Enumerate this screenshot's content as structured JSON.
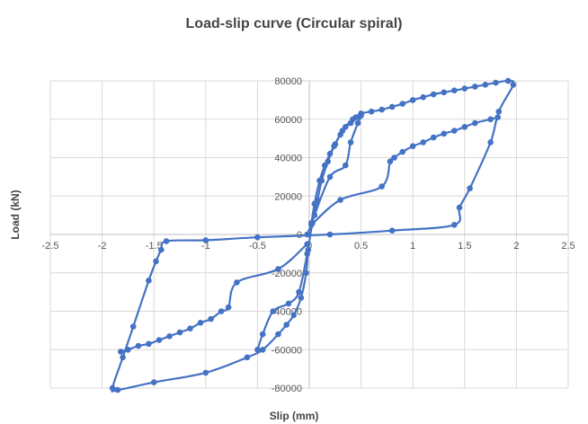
{
  "chart_data": {
    "type": "scatter",
    "title": "Load-slip curve (Circular spiral)",
    "xlabel": "Slip (mm)",
    "ylabel": "Load (kN)",
    "xlim": [
      -2.5,
      2.5
    ],
    "ylim": [
      -80000,
      80000
    ],
    "xticks": [
      "-2.5",
      "-2",
      "-1.5",
      "-1",
      "-0.5",
      "0",
      "0.5",
      "1",
      "1.5",
      "2",
      "2.5"
    ],
    "yticks": [
      "-80000",
      "-60000",
      "-40000",
      "-20000",
      "0",
      "20000",
      "40000",
      "60000",
      "80000"
    ],
    "grid": "vertical and horizontal major gridlines",
    "legend": "none",
    "series_color": "#4472C4",
    "series": [
      {
        "style": "smooth line with markers",
        "points": [
          [
            -0.02,
            0
          ],
          [
            0.02,
            6000
          ],
          [
            0.05,
            16000
          ],
          [
            0.1,
            28000
          ],
          [
            0.15,
            36000
          ],
          [
            0.2,
            42000
          ],
          [
            0.25,
            47000
          ],
          [
            0.3,
            52000
          ],
          [
            0.35,
            56000
          ],
          [
            0.4,
            58000
          ],
          [
            0.45,
            61000
          ],
          [
            0.5,
            63000
          ],
          [
            0.6,
            64000
          ],
          [
            0.7,
            65000
          ],
          [
            0.8,
            66500
          ],
          [
            0.9,
            68000
          ],
          [
            1.0,
            70000
          ],
          [
            1.1,
            71500
          ],
          [
            1.2,
            73000
          ],
          [
            1.3,
            74000
          ],
          [
            1.4,
            75000
          ],
          [
            1.5,
            76000
          ],
          [
            1.6,
            77000
          ],
          [
            1.7,
            78000
          ],
          [
            1.8,
            79000
          ],
          [
            1.92,
            80000
          ],
          [
            1.97,
            78000
          ],
          [
            1.83,
            64000
          ],
          [
            1.75,
            48000
          ],
          [
            1.55,
            24000
          ],
          [
            1.45,
            14000
          ],
          [
            1.4,
            5000
          ],
          [
            0.8,
            2000
          ],
          [
            0.2,
            0
          ],
          [
            -0.5,
            -1500
          ],
          [
            -1.0,
            -3000
          ],
          [
            -1.38,
            -3500
          ],
          [
            -1.43,
            -8000
          ],
          [
            -1.48,
            -14000
          ],
          [
            -1.55,
            -24000
          ],
          [
            -1.7,
            -48000
          ],
          [
            -1.8,
            -64000
          ],
          [
            -1.9,
            -80000
          ],
          [
            -1.85,
            -81000
          ],
          [
            -1.5,
            -77000
          ],
          [
            -1.0,
            -72000
          ],
          [
            -0.6,
            -64000
          ],
          [
            -0.45,
            -60000
          ],
          [
            -0.3,
            -52000
          ],
          [
            -0.22,
            -47000
          ],
          [
            -0.15,
            -42000
          ],
          [
            -0.08,
            -33000
          ],
          [
            -0.03,
            -20000
          ],
          [
            -0.01,
            -8000
          ],
          [
            0.03,
            6000
          ],
          [
            0.08,
            18000
          ],
          [
            0.12,
            28000
          ],
          [
            0.18,
            38000
          ],
          [
            0.24,
            46000
          ],
          [
            0.32,
            54000
          ],
          [
            0.42,
            60000
          ],
          [
            0.48,
            61000
          ]
        ]
      },
      {
        "style": "smooth line with markers",
        "points": [
          [
            0.02,
            5000
          ],
          [
            0.3,
            18000
          ],
          [
            0.7,
            25000
          ],
          [
            0.78,
            38000
          ],
          [
            0.82,
            40000
          ],
          [
            0.9,
            43000
          ],
          [
            1.0,
            46000
          ],
          [
            1.1,
            48000
          ],
          [
            1.2,
            50500
          ],
          [
            1.3,
            52500
          ],
          [
            1.4,
            54000
          ],
          [
            1.5,
            56000
          ],
          [
            1.6,
            58000
          ],
          [
            1.75,
            60000
          ],
          [
            1.82,
            61000
          ]
        ]
      },
      {
        "style": "smooth line with markers",
        "points": [
          [
            -0.02,
            -5000
          ],
          [
            -0.3,
            -18000
          ],
          [
            -0.7,
            -25000
          ],
          [
            -0.78,
            -38000
          ],
          [
            -0.85,
            -40000
          ],
          [
            -0.95,
            -44000
          ],
          [
            -1.05,
            -46000
          ],
          [
            -1.15,
            -49000
          ],
          [
            -1.25,
            -51000
          ],
          [
            -1.35,
            -53000
          ],
          [
            -1.45,
            -55000
          ],
          [
            -1.55,
            -57000
          ],
          [
            -1.65,
            -58000
          ],
          [
            -1.75,
            -60000
          ],
          [
            -1.82,
            -61000
          ]
        ]
      },
      {
        "style": "smooth line with markers",
        "points": [
          [
            0.05,
            10000
          ],
          [
            0.2,
            30000
          ],
          [
            0.35,
            36000
          ],
          [
            0.4,
            48000
          ],
          [
            0.47,
            58000
          ],
          [
            0.5,
            62000
          ]
        ]
      },
      {
        "style": "smooth line with markers",
        "points": [
          [
            -0.02,
            -10000
          ],
          [
            -0.1,
            -30000
          ],
          [
            -0.2,
            -36000
          ],
          [
            -0.35,
            -40000
          ],
          [
            -0.45,
            -52000
          ],
          [
            -0.5,
            -60000
          ]
        ]
      }
    ]
  }
}
